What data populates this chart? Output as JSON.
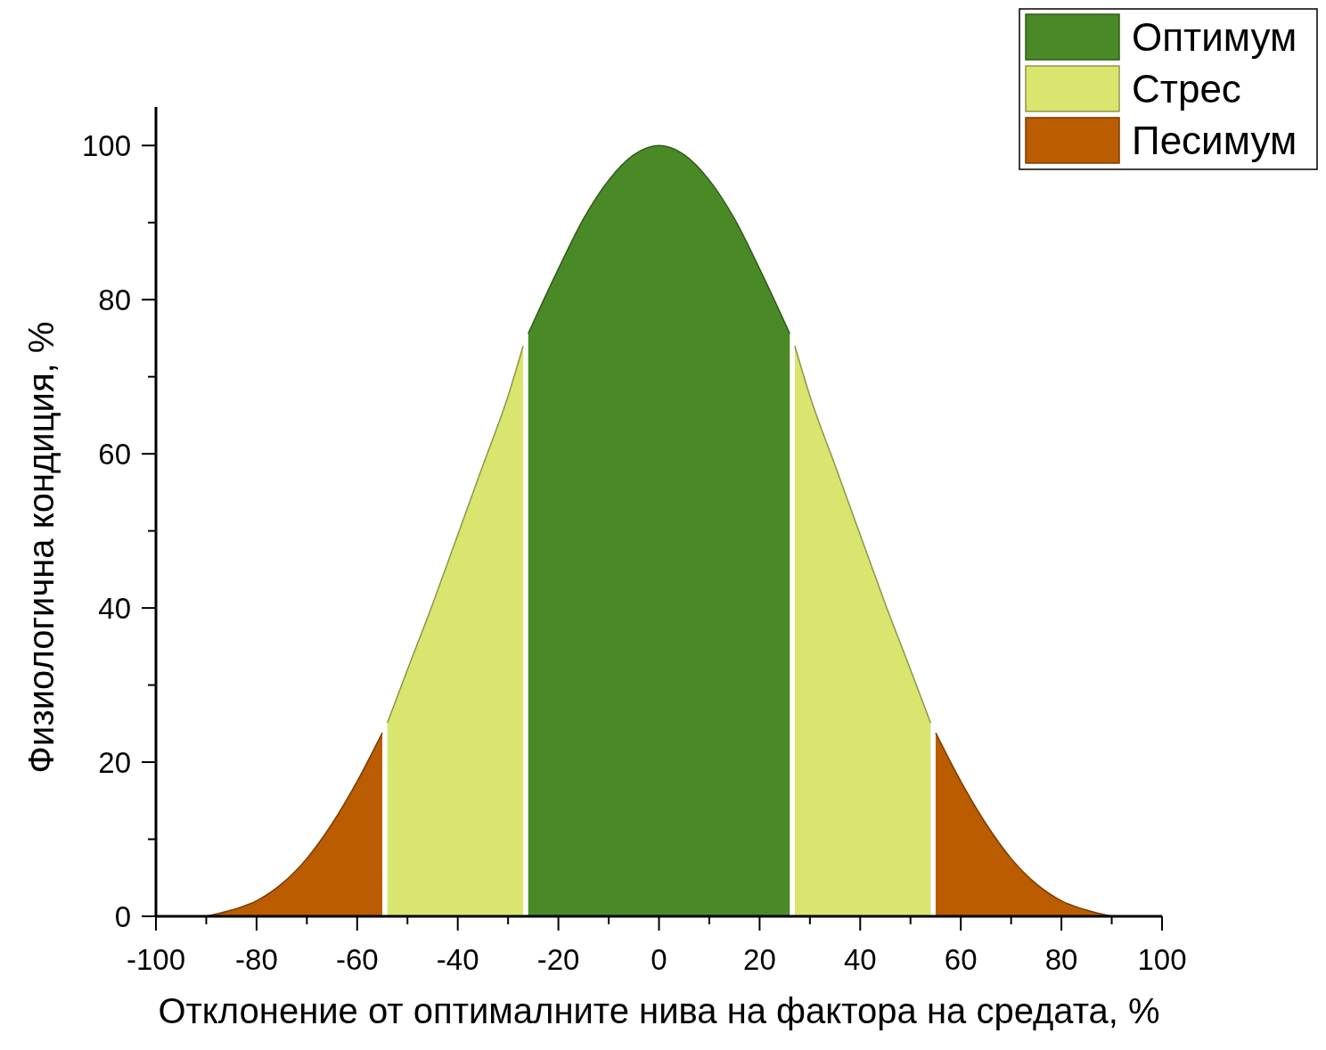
{
  "chart_data": {
    "type": "area",
    "xlabel": "Отклонение от оптималните нива на фактора на средата, %",
    "ylabel": "Физиологична кондиция, %",
    "xlim": [
      -100,
      100
    ],
    "xticks": [
      -100,
      {
        "value": -90,
        "label": null
      },
      -80,
      {
        "value": -70,
        "label": null
      },
      -60,
      {
        "value": -50,
        "label": null
      },
      -40,
      {
        "value": -30,
        "label": null
      },
      -20,
      {
        "value": -10,
        "label": null
      },
      0,
      {
        "value": 10,
        "label": null
      },
      20,
      {
        "value": 30,
        "label": null
      },
      40,
      {
        "value": 50,
        "label": null
      },
      60,
      {
        "value": 70,
        "label": null
      },
      80,
      {
        "value": 90,
        "label": null
      },
      100
    ],
    "ylim": [
      0,
      105
    ],
    "yticks": [
      0,
      {
        "value": 10,
        "label": null
      },
      20,
      {
        "value": 30,
        "label": null
      },
      40,
      {
        "value": 50,
        "label": null
      },
      60,
      {
        "value": 70,
        "label": null
      },
      80,
      {
        "value": 90,
        "label": null
      },
      100
    ],
    "grid": false,
    "legend": "top right",
    "series": [
      {
        "name": "Оптимум",
        "color": "#4a8a26",
        "x": [
          -26,
          -20,
          -15,
          -10,
          -5,
          0,
          5,
          10,
          15,
          20,
          26
        ],
        "values": [
          75.6,
          84,
          90.5,
          95.5,
          98.8,
          100,
          98.8,
          95.5,
          90.5,
          84,
          75.6
        ]
      },
      {
        "name": "Стрес",
        "color": "#d9e56e",
        "x": [
          -54,
          -50,
          -45,
          -40,
          -35,
          -30,
          -27,
          0,
          27,
          30,
          35,
          40,
          45,
          50,
          54
        ],
        "values": [
          25.1,
          32,
          40.5,
          49.5,
          58.5,
          67.5,
          74,
          null,
          74,
          67.5,
          58.5,
          49.5,
          40.5,
          32,
          25.1
        ]
      },
      {
        "name": "Песимум",
        "color": "#bb5c00",
        "x": [
          -90,
          -85,
          -80,
          -75,
          -70,
          -65,
          -60,
          -55,
          0,
          55,
          60,
          65,
          70,
          75,
          80,
          85,
          90
        ],
        "values": [
          0,
          0.8,
          2,
          4.2,
          7.5,
          12,
          17.5,
          23.8,
          null,
          23.8,
          17.5,
          12,
          7.5,
          4.2,
          2,
          0.8,
          0
        ]
      }
    ]
  }
}
